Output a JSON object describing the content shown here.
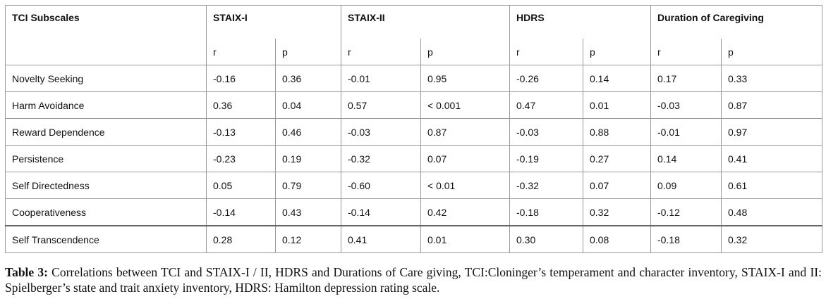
{
  "table": {
    "group_headers": [
      "TCI Subscales",
      "STAIX-I",
      "STAIX-II",
      "HDRS",
      "Duration of Caregiving"
    ],
    "sub_headers": [
      "r",
      "p",
      "r",
      "p",
      "r",
      "p",
      "r",
      "p"
    ],
    "rows": [
      {
        "label": "Novelty Seeking",
        "values": [
          "-0.16",
          "0.36",
          "-0.01",
          "0.95",
          "-0.26",
          "0.14",
          "0.17",
          "0.33"
        ]
      },
      {
        "label": "Harm Avoidance",
        "values": [
          "0.36",
          "0.04",
          "0.57",
          "< 0.001",
          "0.47",
          "0.01",
          "-0.03",
          "0.87"
        ]
      },
      {
        "label": "Reward Dependence",
        "values": [
          "-0.13",
          "0.46",
          "-0.03",
          "0.87",
          "-0.03",
          "0.88",
          "-0.01",
          "0.97"
        ]
      },
      {
        "label": "Persistence",
        "values": [
          "-0.23",
          "0.19",
          "-0.32",
          "0.07",
          "-0.19",
          "0.27",
          "0.14",
          "0.41"
        ]
      },
      {
        "label": "Self Directedness",
        "values": [
          "0.05",
          "0.79",
          "-0.60",
          "< 0.01",
          "-0.32",
          "0.07",
          "0.09",
          "0.61"
        ]
      },
      {
        "label": "Cooperativeness",
        "values": [
          "-0.14",
          "0.43",
          "-0.14",
          "0.42",
          "-0.18",
          "0.32",
          "-0.12",
          "0.48"
        ]
      },
      {
        "label": "Self Transcendence",
        "values": [
          "0.28",
          "0.12",
          "0.41",
          "0.01",
          "0.30",
          "0.08",
          "-0.18",
          "0.32"
        ]
      }
    ]
  },
  "caption": {
    "label": "Table 3:",
    "text": " Correlations between TCI and STAIX-I / II, HDRS and Durations of Care giving, TCI:Cloninger’s temperament and character inventory, STAIX-I and II: Spielberger’s state and trait anxiety inventory, HDRS: Hamilton depression rating scale."
  }
}
